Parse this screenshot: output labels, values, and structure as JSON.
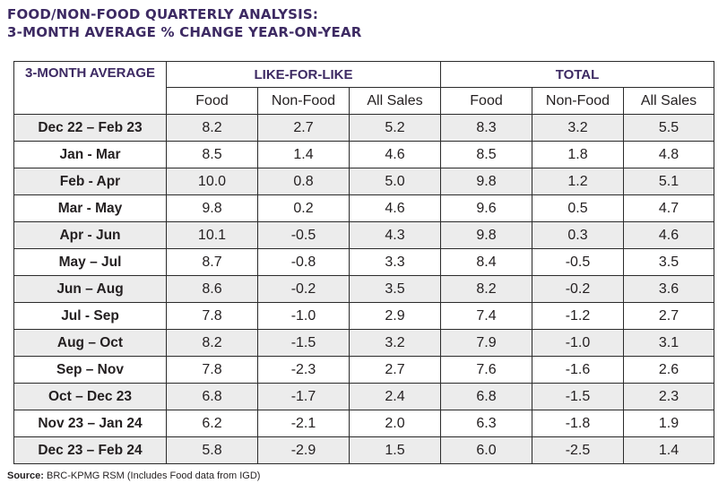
{
  "title": {
    "line1": "FOOD/NON-FOOD QUARTERLY ANALYSIS:",
    "line2": "3-MONTH AVERAGE % CHANGE YEAR-ON-YEAR"
  },
  "table": {
    "corner_header": "3-MONTH AVERAGE",
    "group_headers": [
      "LIKE-FOR-LIKE",
      "TOTAL"
    ],
    "sub_headers": [
      "Food",
      "Non-Food",
      "All Sales",
      "Food",
      "Non-Food",
      "All Sales"
    ],
    "rows": [
      {
        "period": "Dec 22 – Feb 23",
        "values": [
          "8.2",
          "2.7",
          "5.2",
          "8.3",
          "3.2",
          "5.5"
        ]
      },
      {
        "period": "Jan - Mar",
        "values": [
          "8.5",
          "1.4",
          "4.6",
          "8.5",
          "1.8",
          "4.8"
        ]
      },
      {
        "period": "Feb - Apr",
        "values": [
          "10.0",
          "0.8",
          "5.0",
          "9.8",
          "1.2",
          "5.1"
        ]
      },
      {
        "period": "Mar - May",
        "values": [
          "9.8",
          "0.2",
          "4.6",
          "9.6",
          "0.5",
          "4.7"
        ]
      },
      {
        "period": "Apr - Jun",
        "values": [
          "10.1",
          "-0.5",
          "4.3",
          "9.8",
          "0.3",
          "4.6"
        ]
      },
      {
        "period": "May – Jul",
        "values": [
          "8.7",
          "-0.8",
          "3.3",
          "8.4",
          "-0.5",
          "3.5"
        ]
      },
      {
        "period": "Jun – Aug",
        "values": [
          "8.6",
          "-0.2",
          "3.5",
          "8.2",
          "-0.2",
          "3.6"
        ]
      },
      {
        "period": "Jul - Sep",
        "values": [
          "7.8",
          "-1.0",
          "2.9",
          "7.4",
          "-1.2",
          "2.7"
        ]
      },
      {
        "period": "Aug – Oct",
        "values": [
          "8.2",
          "-1.5",
          "3.2",
          "7.9",
          "-1.0",
          "3.1"
        ]
      },
      {
        "period": "Sep – Nov",
        "values": [
          "7.8",
          "-2.3",
          "2.7",
          "7.6",
          "-1.6",
          "2.6"
        ]
      },
      {
        "period": "Oct – Dec 23",
        "values": [
          "6.8",
          "-1.7",
          "2.4",
          "6.8",
          "-1.5",
          "2.3"
        ]
      },
      {
        "period": "Nov 23 – Jan 24",
        "values": [
          "6.2",
          "-2.1",
          "2.0",
          "6.3",
          "-1.8",
          "1.9"
        ]
      },
      {
        "period": "Dec 23 – Feb 24",
        "values": [
          "5.8",
          "-2.9",
          "1.5",
          "6.0",
          "-2.5",
          "1.4"
        ]
      }
    ]
  },
  "source": {
    "label": "Source:",
    "text": " BRC-KPMG RSM (Includes Food data from IGD)"
  },
  "colors": {
    "title": "#3d2a63",
    "row_shade": "#ececec",
    "border": "#2b2b2b"
  }
}
